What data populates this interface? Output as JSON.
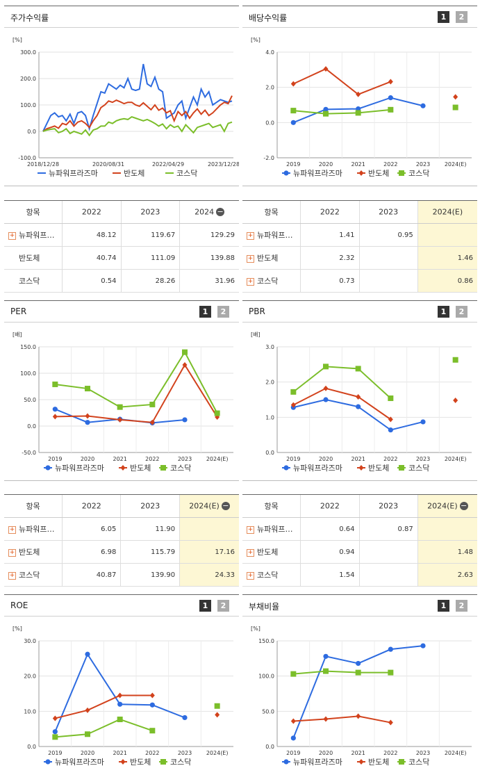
{
  "colors": {
    "company": "#2d6be0",
    "semi": "#d2421c",
    "kosdaq": "#7bbe2a"
  },
  "pager": {
    "b1": "1",
    "b2": "2"
  },
  "charts": [
    {
      "id": "stock",
      "title": "주가수익률",
      "chart_data": {
        "type": "line",
        "unit": "[%]",
        "ylim": [
          -100,
          300
        ],
        "yticks": [
          "300.0",
          "200.0",
          "100.0",
          "0.0",
          "-100.0"
        ],
        "xtick_labels": [
          "2018/12/28",
          "2020/08/31",
          "2022/04/29",
          "2023/12/28"
        ],
        "series": [
          {
            "name": "뉴파워프라즈마",
            "color": "#2d6be0",
            "values": [
              0,
              30,
              60,
              70,
              55,
              60,
              40,
              65,
              30,
              70,
              75,
              60,
              10,
              60,
              105,
              150,
              145,
              180,
              170,
              160,
              175,
              165,
              200,
              160,
              155,
              160,
              255,
              180,
              170,
              205,
              160,
              150,
              50,
              60,
              70,
              100,
              115,
              50,
              90,
              130,
              100,
              160,
              130,
              150,
              100,
              110,
              120,
              115,
              110,
              115
            ]
          },
          {
            "name": "반도체",
            "color": "#d2421c",
            "values": [
              0,
              10,
              15,
              20,
              12,
              30,
              25,
              40,
              20,
              35,
              40,
              30,
              15,
              40,
              60,
              90,
              100,
              115,
              110,
              118,
              112,
              105,
              110,
              110,
              100,
              95,
              108,
              95,
              82,
              100,
              80,
              88,
              70,
              78,
              40,
              75,
              60,
              75,
              50,
              70,
              85,
              65,
              80,
              60,
              70,
              85,
              100,
              110,
              105,
              135
            ]
          },
          {
            "name": "코스닥",
            "color": "#7bbe2a",
            "values": [
              0,
              5,
              8,
              10,
              -5,
              0,
              10,
              -8,
              0,
              -5,
              -10,
              5,
              -15,
              5,
              10,
              20,
              20,
              35,
              30,
              40,
              45,
              48,
              45,
              55,
              50,
              45,
              40,
              45,
              38,
              30,
              20,
              28,
              10,
              25,
              15,
              20,
              0,
              25,
              10,
              -5,
              15,
              20,
              25,
              30,
              15,
              20,
              25,
              0,
              30,
              35
            ]
          }
        ]
      }
    },
    {
      "id": "dividend",
      "title": "배당수익률",
      "chart_data": {
        "type": "line",
        "unit": "[%]",
        "ylim": [
          -2,
          4
        ],
        "yticks": [
          "4.0",
          "2.0",
          "0.0",
          "-2.0"
        ],
        "categories": [
          "2019",
          "2020",
          "2021",
          "2022",
          "2023",
          "2024(E)"
        ],
        "series": [
          {
            "name": "뉴파워프라즈마",
            "color": "#2d6be0",
            "values": [
              0.0,
              0.75,
              0.78,
              1.41,
              0.95,
              null
            ]
          },
          {
            "name": "반도체",
            "color": "#d2421c",
            "values": [
              2.2,
              3.05,
              1.6,
              2.32,
              null,
              1.46
            ]
          },
          {
            "name": "코스닥",
            "color": "#7bbe2a",
            "values": [
              0.68,
              0.5,
              0.55,
              0.73,
              null,
              0.86
            ]
          }
        ]
      }
    },
    {
      "id": "per",
      "title": "PER",
      "chart_data": {
        "type": "line",
        "unit": "[배]",
        "ylim": [
          -50,
          150
        ],
        "yticks": [
          "150.0",
          "100.0",
          "50.0",
          "0.0",
          "-50.0"
        ],
        "categories": [
          "2019",
          "2020",
          "2021",
          "2022",
          "2023",
          "2024(E)"
        ],
        "series": [
          {
            "name": "뉴파워프라즈마",
            "color": "#2d6be0",
            "values": [
              32,
              7,
              13,
              6.05,
              11.9,
              null
            ]
          },
          {
            "name": "반도체",
            "color": "#d2421c",
            "values": [
              18,
              19,
              12,
              6.98,
              115.79,
              17.16
            ]
          },
          {
            "name": "코스닥",
            "color": "#7bbe2a",
            "values": [
              79,
              71,
              36,
              40.87,
              139.9,
              24.33
            ]
          }
        ]
      }
    },
    {
      "id": "pbr",
      "title": "PBR",
      "chart_data": {
        "type": "line",
        "unit": "[배]",
        "ylim": [
          0,
          3
        ],
        "yticks": [
          "3.0",
          "2.0",
          "1.0",
          "0.0"
        ],
        "categories": [
          "2019",
          "2020",
          "2021",
          "2022",
          "2023",
          "2024(E)"
        ],
        "series": [
          {
            "name": "뉴파워프라즈마",
            "color": "#2d6be0",
            "values": [
              1.28,
              1.5,
              1.3,
              0.64,
              0.87,
              null
            ]
          },
          {
            "name": "반도체",
            "color": "#d2421c",
            "values": [
              1.35,
              1.82,
              1.58,
              0.94,
              null,
              1.48
            ]
          },
          {
            "name": "코스닥",
            "color": "#7bbe2a",
            "values": [
              1.72,
              2.44,
              2.38,
              1.54,
              null,
              2.63
            ]
          }
        ]
      }
    },
    {
      "id": "roe",
      "title": "ROE",
      "chart_data": {
        "type": "line",
        "unit": "[%]",
        "ylim": [
          0,
          30
        ],
        "yticks": [
          "30.0",
          "20.0",
          "10.0",
          "0.0"
        ],
        "categories": [
          "2019",
          "2020",
          "2021",
          "2022",
          "2023",
          "2024(E)"
        ],
        "series": [
          {
            "name": "뉴파워프라즈마",
            "color": "#2d6be0",
            "values": [
              4.2,
              26.2,
              12.0,
              11.8,
              8.2,
              null
            ]
          },
          {
            "name": "반도체",
            "color": "#d2421c",
            "values": [
              8.0,
              10.3,
              14.5,
              14.5,
              null,
              9.0
            ]
          },
          {
            "name": "코스닥",
            "color": "#7bbe2a",
            "values": [
              2.7,
              3.5,
              7.7,
              4.5,
              null,
              11.5
            ]
          }
        ]
      }
    },
    {
      "id": "debt",
      "title": "부채비율",
      "chart_data": {
        "type": "line",
        "unit": "[%]",
        "ylim": [
          0,
          150
        ],
        "yticks": [
          "150.0",
          "100.0",
          "50.0",
          "0.0"
        ],
        "categories": [
          "2019",
          "2020",
          "2021",
          "2022",
          "2023",
          "2024(E)"
        ],
        "series": [
          {
            "name": "뉴파워프라즈마",
            "color": "#2d6be0",
            "values": [
              12,
              128,
              118,
              138,
              143,
              null
            ]
          },
          {
            "name": "반도체",
            "color": "#d2421c",
            "values": [
              36,
              39,
              43,
              34,
              null,
              null
            ]
          },
          {
            "name": "코스닥",
            "color": "#7bbe2a",
            "values": [
              103,
              107,
              105,
              105,
              null,
              null
            ]
          }
        ]
      }
    }
  ],
  "tables": [
    {
      "id": "stock-table",
      "headers": [
        "항목",
        "2022",
        "2023",
        "2024"
      ],
      "header_minus": true,
      "hl_col": -1,
      "rows": [
        {
          "name": "뉴파워프…",
          "plus": true,
          "cells": [
            "48.12",
            "119.67",
            "129.29"
          ]
        },
        {
          "name": "반도체",
          "plus": false,
          "cells": [
            "40.74",
            "111.09",
            "139.88"
          ]
        },
        {
          "name": "코스닥",
          "plus": false,
          "cells": [
            "0.54",
            "28.26",
            "31.96"
          ]
        }
      ]
    },
    {
      "id": "dividend-table",
      "headers": [
        "항목",
        "2022",
        "2023",
        "2024(E)"
      ],
      "header_minus": false,
      "hl_col": 2,
      "rows": [
        {
          "name": "뉴파워프…",
          "plus": true,
          "cells": [
            "1.41",
            "0.95",
            ""
          ]
        },
        {
          "name": "반도체",
          "plus": true,
          "cells": [
            "2.32",
            "",
            "1.46"
          ]
        },
        {
          "name": "코스닥",
          "plus": true,
          "cells": [
            "0.73",
            "",
            "0.86"
          ]
        }
      ]
    },
    {
      "id": "per-table",
      "headers": [
        "항목",
        "2022",
        "2023",
        "2024(E)"
      ],
      "header_minus": true,
      "hl_col": 2,
      "rows": [
        {
          "name": "뉴파워프…",
          "plus": true,
          "cells": [
            "6.05",
            "11.90",
            ""
          ]
        },
        {
          "name": "반도체",
          "plus": true,
          "cells": [
            "6.98",
            "115.79",
            "17.16"
          ]
        },
        {
          "name": "코스닥",
          "plus": true,
          "cells": [
            "40.87",
            "139.90",
            "24.33"
          ]
        }
      ]
    },
    {
      "id": "pbr-table",
      "headers": [
        "항목",
        "2022",
        "2023",
        "2024(E)"
      ],
      "header_minus": true,
      "hl_col": 2,
      "rows": [
        {
          "name": "뉴파워프…",
          "plus": true,
          "cells": [
            "0.64",
            "0.87",
            ""
          ]
        },
        {
          "name": "반도체",
          "plus": true,
          "cells": [
            "0.94",
            "",
            "1.48"
          ]
        },
        {
          "name": "코스닥",
          "plus": true,
          "cells": [
            "1.54",
            "",
            "2.63"
          ]
        }
      ]
    }
  ]
}
